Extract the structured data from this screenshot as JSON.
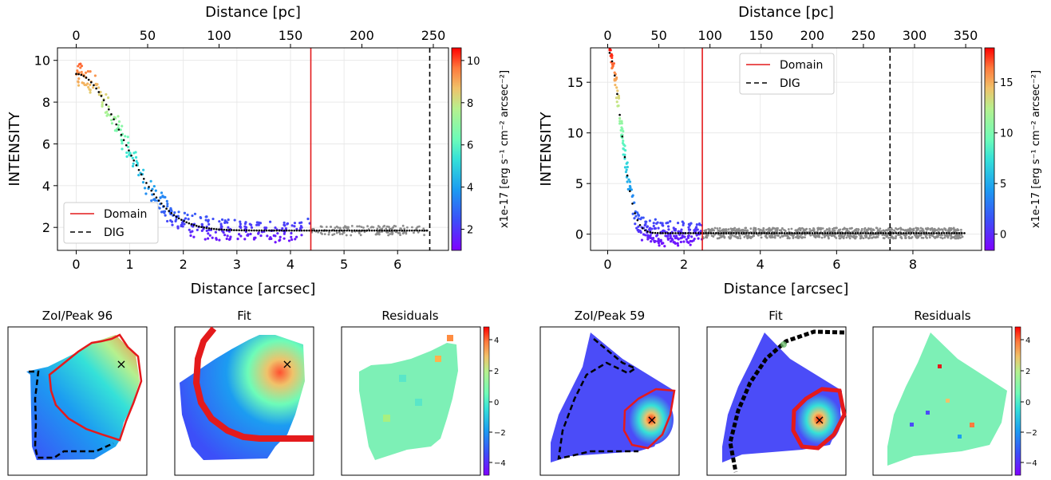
{
  "chart_data": [
    {
      "type": "scatter",
      "panel": "top-left",
      "x_bottom_label": "Distance [arcsec]",
      "x_top_label": "Distance [pc]",
      "ylabel": "INTENSITY",
      "colorbar_label": "x1e-17 [erg s⁻¹ cm⁻² arcsec⁻²]",
      "xlim": [
        -0.35,
        6.95
      ],
      "ylim": [
        0.9,
        10.6
      ],
      "x_ticks": [
        0,
        1,
        2,
        3,
        4,
        5,
        6
      ],
      "y_ticks": [
        2,
        4,
        6,
        8,
        10
      ],
      "top_ticks": [
        0,
        50,
        100,
        150,
        200,
        250
      ],
      "pc_per_arcsec": 37.5,
      "colorbar_ticks": [
        2,
        4,
        6,
        8,
        10
      ],
      "colorbar_range": [
        1.0,
        10.6
      ],
      "domain_x": 4.38,
      "dig_x": 6.6,
      "dig_profile": {
        "floor": 1.85,
        "amp": 7.5,
        "scale": 1.2,
        "start": 0.0,
        "end": 6.55
      },
      "scatter_range": [
        0.0,
        6.55
      ],
      "noise_level": 0.35,
      "legend": [
        "Domain",
        "DIG"
      ],
      "legend_position": "lower-left",
      "grid": true
    },
    {
      "type": "scatter",
      "panel": "top-right",
      "x_bottom_label": "Distance [arcsec]",
      "x_top_label": "Distance [pc]",
      "ylabel": "INTENSITY",
      "colorbar_label": "x1e-17 [erg s⁻¹ cm⁻² arcsec⁻²]",
      "xlim": [
        -0.45,
        9.8
      ],
      "ylim": [
        -1.6,
        18.4
      ],
      "x_ticks": [
        0,
        2,
        4,
        6,
        8
      ],
      "y_ticks": [
        0,
        5,
        10,
        15
      ],
      "top_ticks": [
        0,
        50,
        100,
        150,
        200,
        250,
        300,
        350
      ],
      "pc_per_arcsec": 37.3,
      "colorbar_ticks": [
        0,
        5,
        10,
        15
      ],
      "colorbar_range": [
        -1.6,
        18.4
      ],
      "domain_x": 2.48,
      "dig_x": 7.4,
      "dig_profile": {
        "floor": 0.1,
        "amp": 18.0,
        "scale": 0.48,
        "start": 0.05,
        "end": 9.35
      },
      "scatter_range": [
        0.05,
        9.3
      ],
      "noise_level": 0.8,
      "legend": [
        "Domain",
        "DIG"
      ],
      "legend_position": "upper-center",
      "grid": true
    }
  ],
  "bottom_left": {
    "panel1_title": "ZoI/Peak 96",
    "panel2_title": "Fit",
    "panel3_title": "Residuals",
    "colorbar_ticks": [
      "4",
      "2",
      "0",
      "−2",
      "−4"
    ]
  },
  "bottom_right": {
    "panel1_title": "ZoI/Peak 59",
    "panel2_title": "Fit",
    "panel3_title": "Residuals",
    "colorbar_ticks": [
      "4",
      "2",
      "0",
      "−2",
      "−4"
    ]
  },
  "colors": {
    "domain_line": "#e41a1c",
    "dig_line": "#000000",
    "outside_points": "#8c8c8c",
    "marker": "#000000"
  }
}
